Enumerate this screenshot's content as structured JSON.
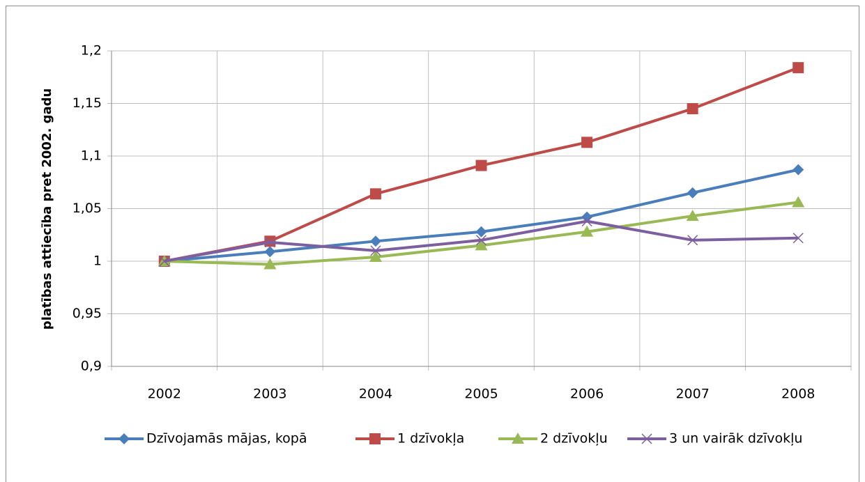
{
  "chart_data": {
    "type": "line",
    "y_label": "platības attiecība pret 2002. gadu",
    "categories": [
      "2002",
      "2003",
      "2004",
      "2005",
      "2006",
      "2007",
      "2008"
    ],
    "series": [
      {
        "name": "Dzīvojamās mājas, kopā",
        "color": "#4a7ebb",
        "marker": "diamond",
        "values": [
          1.0,
          1.009,
          1.019,
          1.028,
          1.042,
          1.065,
          1.087
        ]
      },
      {
        "name": "1 dzīvokļa",
        "color": "#be4b48",
        "marker": "square",
        "values": [
          1.0,
          1.019,
          1.064,
          1.091,
          1.113,
          1.145,
          1.184
        ]
      },
      {
        "name": "2 dzīvokļu",
        "color": "#98b954",
        "marker": "triangle",
        "values": [
          1.0,
          0.997,
          1.004,
          1.015,
          1.028,
          1.043,
          1.056
        ]
      },
      {
        "name": "3 un vairāk dzīvokļu",
        "color": "#7d5fa0",
        "marker": "x",
        "values": [
          1.0,
          1.018,
          1.01,
          1.02,
          1.038,
          1.02,
          1.022
        ]
      }
    ],
    "ylim": [
      0.9,
      1.2
    ],
    "yticks": [
      {
        "value": 0.9,
        "label": "0,9"
      },
      {
        "value": 0.95,
        "label": "0,95"
      },
      1,
      {
        "value": 1.05,
        "label": "1,05"
      },
      {
        "value": 1.1,
        "label": "1,1"
      },
      {
        "value": 1.15,
        "label": "1,15"
      },
      {
        "value": 1.2,
        "label": "1,2"
      }
    ],
    "grid": true,
    "legend": "bottom"
  }
}
